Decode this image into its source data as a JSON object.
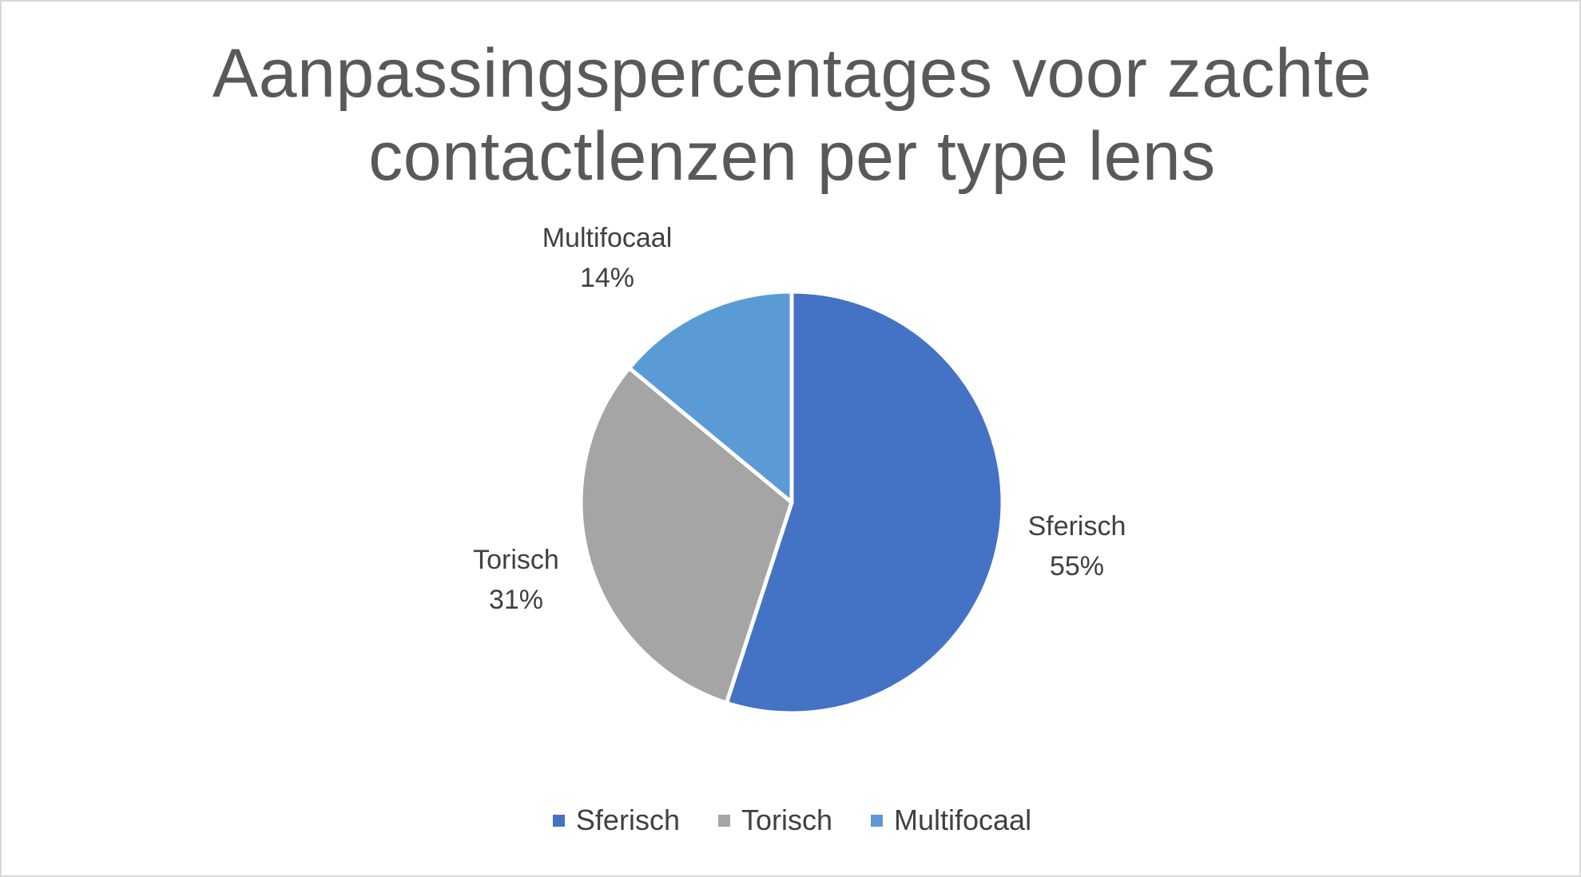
{
  "chart_data": {
    "type": "pie",
    "title": [
      "Aanpassingspercentages voor zachte",
      "contactlenzen per type lens"
    ],
    "categories": [
      "Sferisch",
      "Torisch",
      "Multifocaal"
    ],
    "values": [
      55,
      31,
      14
    ],
    "value_labels": [
      "55%",
      "31%",
      "14%"
    ],
    "colors": [
      "#4472C4",
      "#A5A5A5",
      "#5B9BD5"
    ],
    "start_angle_deg": 0,
    "direction": "clockwise",
    "legend": {
      "position": "bottom",
      "entries": [
        "Sferisch",
        "Torisch",
        "Multifocaal"
      ]
    },
    "data_labels": "category name and percentage, outside end"
  }
}
